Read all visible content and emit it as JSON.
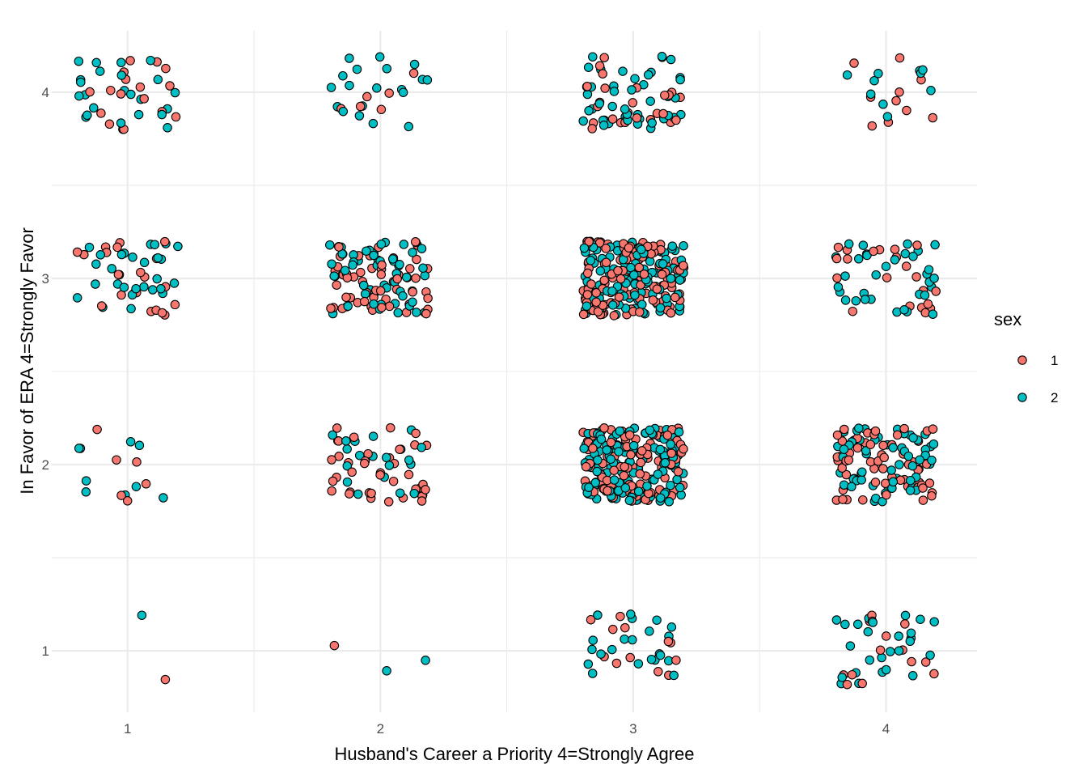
{
  "chart_data": {
    "type": "scatter",
    "jitter": {
      "width": 0.2,
      "height": 0.2
    },
    "xlabel": "Husband's Career a Priority 4=Strongly Agree",
    "ylabel": "In Favor of ERA 4=Strongly Favor",
    "x_ticks": [
      "1",
      "2",
      "3",
      "4"
    ],
    "y_ticks": [
      "1",
      "2",
      "3",
      "4"
    ],
    "xlim": [
      0.7,
      4.36
    ],
    "ylim": [
      0.67,
      4.33
    ],
    "grid": true,
    "legend": {
      "title": "sex",
      "position": "right",
      "entries": [
        {
          "label": "1",
          "color": "#F8766D"
        },
        {
          "label": "2",
          "color": "#00BFC4"
        }
      ]
    },
    "series": [
      {
        "name": "1",
        "color": "#F8766D",
        "counts": [
          {
            "x": 1,
            "y": 1,
            "n": 1
          },
          {
            "x": 2,
            "y": 1,
            "n": 1
          },
          {
            "x": 3,
            "y": 1,
            "n": 12
          },
          {
            "x": 4,
            "y": 1,
            "n": 14
          },
          {
            "x": 1,
            "y": 2,
            "n": 6
          },
          {
            "x": 2,
            "y": 2,
            "n": 38
          },
          {
            "x": 3,
            "y": 2,
            "n": 115
          },
          {
            "x": 4,
            "y": 2,
            "n": 60
          },
          {
            "x": 1,
            "y": 3,
            "n": 20
          },
          {
            "x": 2,
            "y": 3,
            "n": 55
          },
          {
            "x": 3,
            "y": 3,
            "n": 120
          },
          {
            "x": 4,
            "y": 3,
            "n": 22
          },
          {
            "x": 1,
            "y": 4,
            "n": 16
          },
          {
            "x": 2,
            "y": 4,
            "n": 6
          },
          {
            "x": 3,
            "y": 4,
            "n": 28
          },
          {
            "x": 4,
            "y": 4,
            "n": 10
          }
        ]
      },
      {
        "name": "2",
        "color": "#00BFC4",
        "counts": [
          {
            "x": 1,
            "y": 1,
            "n": 1
          },
          {
            "x": 2,
            "y": 1,
            "n": 2
          },
          {
            "x": 3,
            "y": 1,
            "n": 22
          },
          {
            "x": 4,
            "y": 1,
            "n": 26
          },
          {
            "x": 1,
            "y": 2,
            "n": 9
          },
          {
            "x": 2,
            "y": 2,
            "n": 22
          },
          {
            "x": 3,
            "y": 2,
            "n": 135
          },
          {
            "x": 4,
            "y": 2,
            "n": 60
          },
          {
            "x": 1,
            "y": 3,
            "n": 30
          },
          {
            "x": 2,
            "y": 3,
            "n": 55
          },
          {
            "x": 3,
            "y": 3,
            "n": 120
          },
          {
            "x": 4,
            "y": 3,
            "n": 33
          },
          {
            "x": 1,
            "y": 4,
            "n": 24
          },
          {
            "x": 2,
            "y": 4,
            "n": 19
          },
          {
            "x": 3,
            "y": 4,
            "n": 42
          },
          {
            "x": 4,
            "y": 4,
            "n": 10
          }
        ]
      }
    ]
  }
}
